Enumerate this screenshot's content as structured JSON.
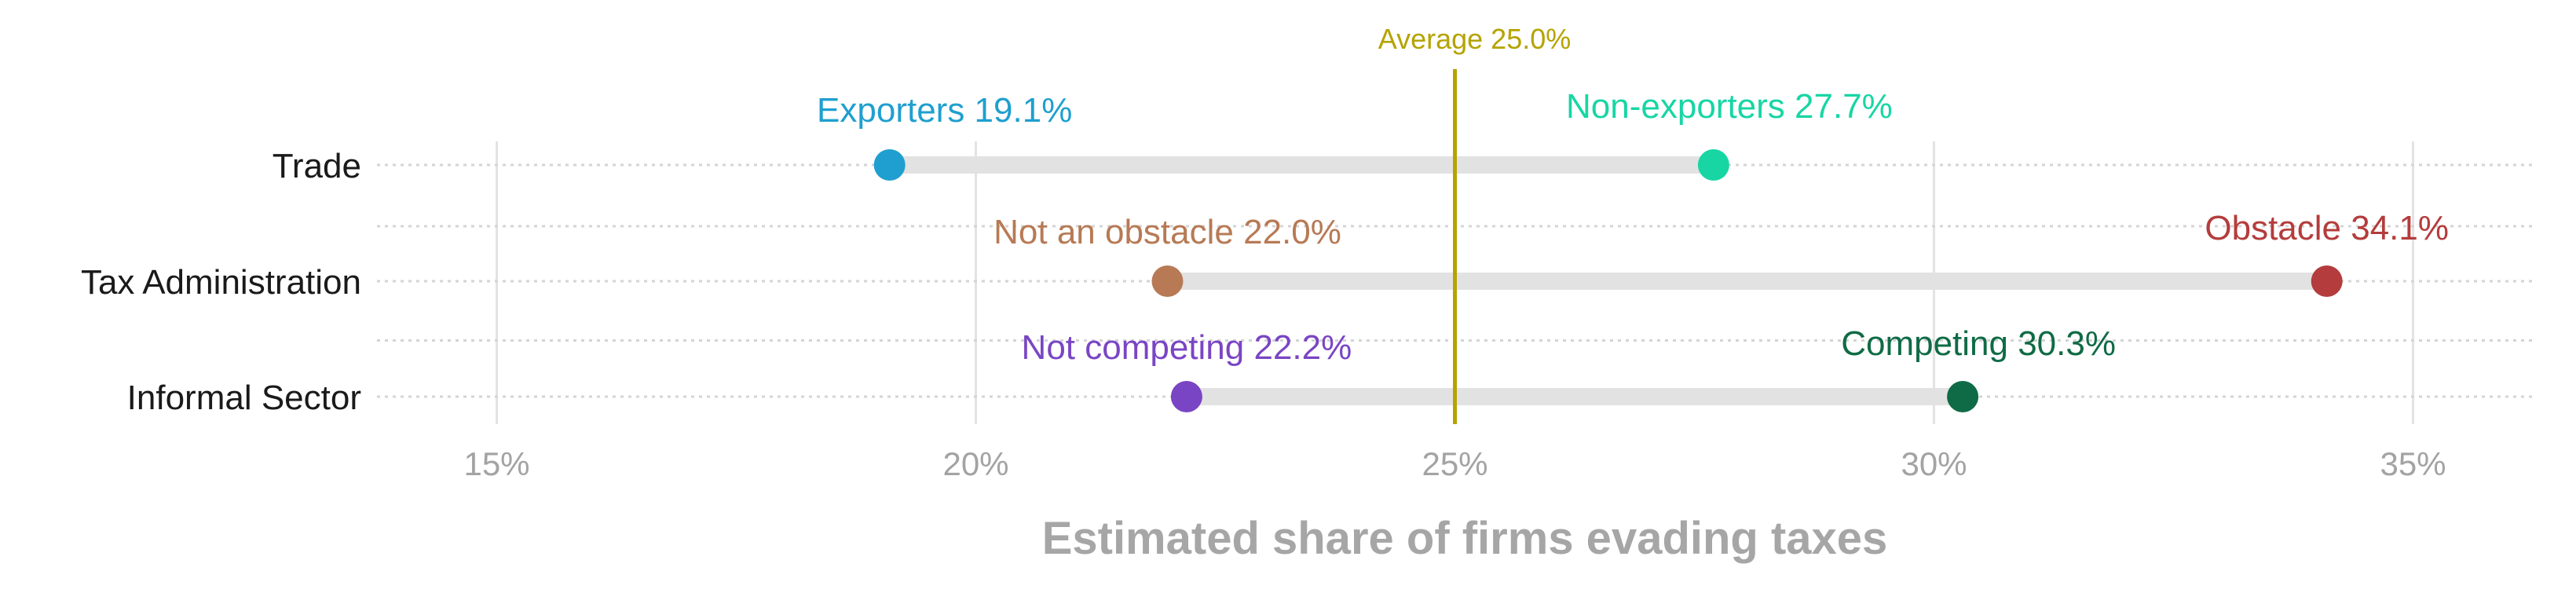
{
  "chart_data": {
    "type": "dumbbell",
    "xlabel": "Estimated share of firms evading taxes",
    "xlim": [
      13.75,
      36.25
    ],
    "xticks": [
      15,
      20,
      25,
      30,
      35
    ],
    "xtick_labels": [
      "15%",
      "20%",
      "25%",
      "30%",
      "35%"
    ],
    "categories": [
      "Trade",
      "Tax Administration",
      "Informal Sector"
    ],
    "rows": [
      {
        "category": "Trade",
        "low": {
          "label": "Exporters 19.1%",
          "value": 19.1,
          "color": "#1f9fcf"
        },
        "high": {
          "label": "Non-exporters 27.7%",
          "value": 27.7,
          "color": "#17d6a4"
        }
      },
      {
        "category": "Tax Administration",
        "low": {
          "label": "Not an obstacle 22.0%",
          "value": 22.0,
          "color": "#b77a55"
        },
        "high": {
          "label": "Obstacle 34.1%",
          "value": 34.1,
          "color": "#b43c3c"
        }
      },
      {
        "category": "Informal Sector",
        "low": {
          "label": "Not competing 22.2%",
          "value": 22.2,
          "color": "#7a45c4"
        },
        "high": {
          "label": "Competing 30.3%",
          "value": 30.3,
          "color": "#0f6b45"
        }
      }
    ],
    "reference_line": {
      "label": "Average 25.0%",
      "value": 25.0,
      "color": "#b5a300"
    },
    "grid": true
  }
}
